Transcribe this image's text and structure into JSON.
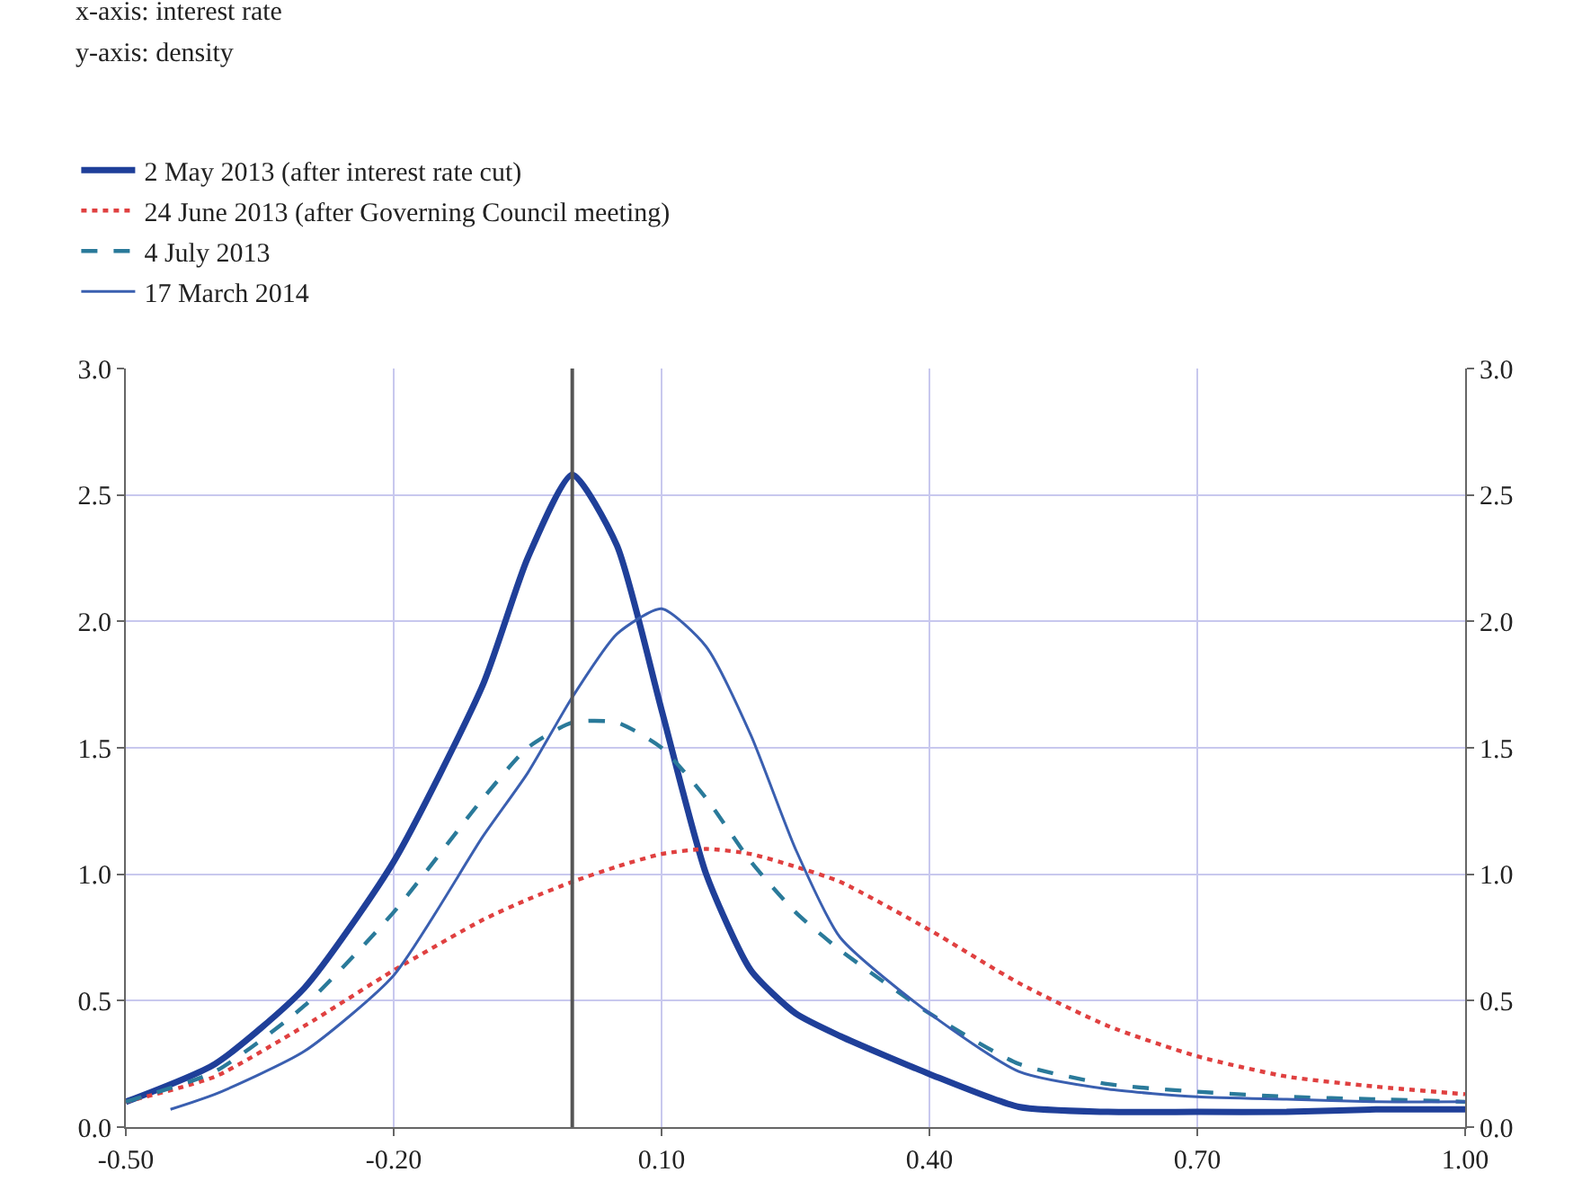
{
  "chart_data": {
    "type": "line",
    "annotations": [
      "x-axis: interest rate",
      "y-axis: density"
    ],
    "x": [
      -0.5,
      -0.4,
      -0.3,
      -0.2,
      -0.1,
      -0.05,
      0.0,
      0.05,
      0.1,
      0.15,
      0.2,
      0.25,
      0.3,
      0.4,
      0.5,
      0.6,
      0.7,
      0.8,
      0.9,
      1.0
    ],
    "series": [
      {
        "name": "2 May 2013 (after interest rate cut)",
        "color": "#1f3f99",
        "line_style": "solid",
        "values": [
          0.1,
          0.25,
          0.55,
          1.05,
          1.75,
          2.25,
          2.58,
          2.3,
          1.65,
          1.0,
          0.62,
          0.45,
          0.36,
          0.21,
          0.08,
          0.06,
          0.06,
          0.06,
          0.07,
          0.07
        ]
      },
      {
        "name": "24 June 2013 (after Governing Council meeting)",
        "color": "#e04040",
        "line_style": "dotted",
        "values": [
          0.1,
          0.2,
          0.4,
          0.62,
          0.82,
          0.9,
          0.97,
          1.03,
          1.08,
          1.1,
          1.08,
          1.03,
          0.97,
          0.78,
          0.57,
          0.4,
          0.28,
          0.2,
          0.16,
          0.13
        ]
      },
      {
        "name": "4 July 2013",
        "color": "#2a7a9a",
        "line_style": "dashed",
        "values": [
          0.1,
          0.22,
          0.48,
          0.85,
          1.3,
          1.5,
          1.6,
          1.6,
          1.5,
          1.3,
          1.05,
          0.85,
          0.7,
          0.45,
          0.25,
          0.17,
          0.14,
          0.12,
          0.11,
          0.1
        ]
      },
      {
        "name": "17 March 2014",
        "color": "#3a5fb0",
        "line_style": "solid",
        "x": [
          -0.45,
          -0.4,
          -0.3,
          -0.2,
          -0.1,
          -0.05,
          0.0,
          0.05,
          0.1,
          0.15,
          0.2,
          0.25,
          0.3,
          0.4,
          0.5,
          0.6,
          0.7,
          0.8,
          0.9,
          1.0
        ],
        "values": [
          0.07,
          0.13,
          0.3,
          0.6,
          1.15,
          1.4,
          1.7,
          1.95,
          2.05,
          1.9,
          1.55,
          1.1,
          0.75,
          0.45,
          0.22,
          0.15,
          0.12,
          0.11,
          0.1,
          0.1
        ]
      }
    ],
    "xlim": [
      -0.5,
      1.0
    ],
    "xticks": [
      {
        "value": -0.5,
        "label": "-0.50"
      },
      {
        "value": -0.2,
        "label": "-0.20"
      },
      {
        "value": 0.1,
        "label": "0.10"
      },
      {
        "value": 0.4,
        "label": "0.40"
      },
      {
        "value": 0.7,
        "label": "0.70"
      },
      {
        "value": 1.0,
        "label": "1.00"
      }
    ],
    "ylim": [
      0,
      3
    ],
    "yticks": [
      {
        "value": 0,
        "label": "0.0"
      },
      {
        "value": 0.5,
        "label": "0.5"
      },
      {
        "value": 1,
        "label": "1.0"
      },
      {
        "value": 1.5,
        "label": "1.5"
      },
      {
        "value": 2,
        "label": "2.0"
      },
      {
        "value": 2.5,
        "label": "2.5"
      },
      {
        "value": 3,
        "label": "3.0"
      }
    ],
    "y2lim": [
      0,
      3
    ],
    "y2ticks": [
      {
        "value": 0,
        "label": "0.0"
      },
      {
        "value": 0.5,
        "label": "0.5"
      },
      {
        "value": 1,
        "label": "1.0"
      },
      {
        "value": 1.5,
        "label": "1.5"
      },
      {
        "value": 2,
        "label": "2.0"
      },
      {
        "value": 2.5,
        "label": "2.5"
      },
      {
        "value": 3,
        "label": "3.0"
      }
    ],
    "ref_lines": [
      {
        "axis": "x",
        "value": 0,
        "color": "#555555",
        "line_style": "solid"
      }
    ],
    "grid": true,
    "legend": "top left",
    "marker": "none"
  }
}
